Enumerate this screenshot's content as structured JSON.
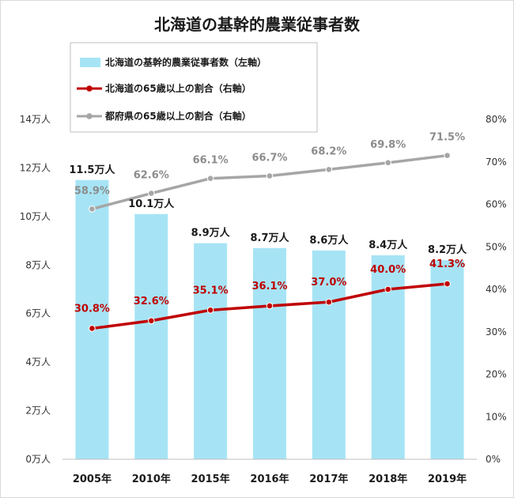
{
  "chart_data": {
    "type": "bar+line",
    "title": "北海道の基幹的農業従事者数",
    "categories": [
      "2005年",
      "2010年",
      "2015年",
      "2016年",
      "2017年",
      "2018年",
      "2019年"
    ],
    "left_axis": {
      "range": [
        0,
        14
      ],
      "ticks": [
        0,
        2,
        4,
        6,
        8,
        10,
        12,
        14
      ],
      "tick_labels": [
        "0万人",
        "2万人",
        "4万人",
        "6万人",
        "8万人",
        "10万人",
        "12万人",
        "14万人"
      ]
    },
    "right_axis": {
      "range": [
        0,
        80
      ],
      "ticks": [
        0,
        10,
        20,
        30,
        40,
        50,
        60,
        70,
        80
      ],
      "tick_labels": [
        "0%",
        "10%",
        "20%",
        "30%",
        "40%",
        "50%",
        "60%",
        "70%",
        "80%"
      ]
    },
    "grid": false,
    "legend_position": "top-left",
    "series": [
      {
        "name": "北海道の基幹的農業従事者数（左軸）",
        "kind": "bar",
        "axis": "left",
        "color": "#a6e4f5",
        "values": [
          11.5,
          10.1,
          8.9,
          8.7,
          8.6,
          8.4,
          8.2
        ],
        "labels": [
          "11.5万人",
          "10.1万人",
          "8.9万人",
          "8.7万人",
          "8.6万人",
          "8.4万人",
          "8.2万人"
        ]
      },
      {
        "name": "北海道の65歳以上の割合（右軸）",
        "kind": "line",
        "axis": "right",
        "color": "#c00000",
        "values": [
          30.8,
          32.6,
          35.1,
          36.1,
          37.0,
          40.0,
          41.3
        ],
        "labels": [
          "30.8%",
          "32.6%",
          "35.1%",
          "36.1%",
          "37.0%",
          "40.0%",
          "41.3%"
        ]
      },
      {
        "name": "都府県の65歳以上の割合（右軸）",
        "kind": "line",
        "axis": "right",
        "color": "#a6a6a6",
        "values": [
          58.9,
          62.6,
          66.1,
          66.7,
          68.2,
          69.8,
          71.5
        ],
        "labels": [
          "58.9%",
          "62.6%",
          "66.1%",
          "66.7%",
          "68.2%",
          "69.8%",
          "71.5%"
        ]
      }
    ]
  }
}
